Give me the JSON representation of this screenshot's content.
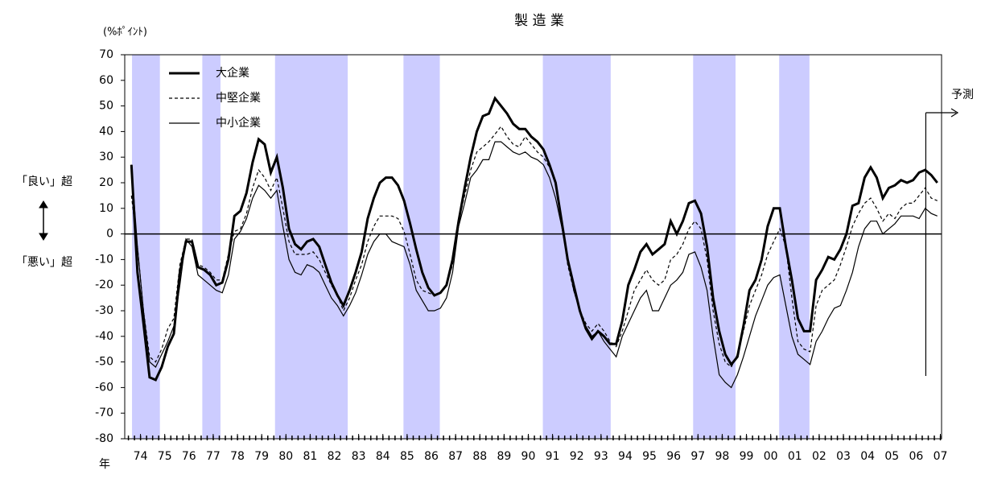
{
  "chart_data": {
    "type": "line",
    "title": "製 造 業",
    "y_unit": "(%ﾎﾟｲﾝﾄ)",
    "annotations": {
      "good": "「良い」超",
      "bad": "「悪い」超",
      "x_unit": "年",
      "forecast": {
        "label": "予測",
        "x": 2006.9
      }
    },
    "xlim": [
      1973.85,
      2007.55
    ],
    "ylim": [
      -80,
      70
    ],
    "yticks": [
      -80,
      -70,
      -60,
      -50,
      -40,
      -30,
      -20,
      -10,
      0,
      10,
      20,
      30,
      40,
      50,
      60,
      70
    ],
    "xticks": [
      {
        "value": 1974.5,
        "label": "74"
      },
      {
        "value": 1975.5,
        "label": "75"
      },
      {
        "value": 1976.5,
        "label": "76"
      },
      {
        "value": 1977.5,
        "label": "77"
      },
      {
        "value": 1978.5,
        "label": "78"
      },
      {
        "value": 1979.5,
        "label": "79"
      },
      {
        "value": 1980.5,
        "label": "80"
      },
      {
        "value": 1981.5,
        "label": "81"
      },
      {
        "value": 1982.5,
        "label": "82"
      },
      {
        "value": 1983.5,
        "label": "83"
      },
      {
        "value": 1984.5,
        "label": "84"
      },
      {
        "value": 1985.5,
        "label": "85"
      },
      {
        "value": 1986.5,
        "label": "86"
      },
      {
        "value": 1987.5,
        "label": "87"
      },
      {
        "value": 1988.5,
        "label": "88"
      },
      {
        "value": 1989.5,
        "label": "89"
      },
      {
        "value": 1990.5,
        "label": "90"
      },
      {
        "value": 1991.5,
        "label": "91"
      },
      {
        "value": 1992.5,
        "label": "92"
      },
      {
        "value": 1993.5,
        "label": "93"
      },
      {
        "value": 1994.5,
        "label": "94"
      },
      {
        "value": 1995.5,
        "label": "95"
      },
      {
        "value": 1996.5,
        "label": "96"
      },
      {
        "value": 1997.5,
        "label": "97"
      },
      {
        "value": 1998.5,
        "label": "98"
      },
      {
        "value": 1999.5,
        "label": "99"
      },
      {
        "value": 2000.5,
        "label": "00"
      },
      {
        "value": 2001.5,
        "label": "01"
      },
      {
        "value": 2002.5,
        "label": "02"
      },
      {
        "value": 2003.5,
        "label": "03"
      },
      {
        "value": 2004.5,
        "label": "04"
      },
      {
        "value": 2005.5,
        "label": "05"
      },
      {
        "value": 2006.5,
        "label": "06"
      },
      {
        "value": 2007.5,
        "label": "07"
      }
    ],
    "shaded_periods": [
      [
        1974.15,
        1975.3
      ],
      [
        1977.05,
        1977.8
      ],
      [
        1980.05,
        1983.05
      ],
      [
        1985.35,
        1986.85
      ],
      [
        1991.1,
        1993.9
      ],
      [
        1997.3,
        1999.05
      ],
      [
        2000.85,
        2002.1
      ]
    ],
    "shade_color": "#ccccff",
    "x": [
      1974.125,
      1974.375,
      1974.625,
      1974.875,
      1975.125,
      1975.375,
      1975.625,
      1975.875,
      1976.125,
      1976.375,
      1976.625,
      1976.875,
      1977.125,
      1977.375,
      1977.625,
      1977.875,
      1978.125,
      1978.375,
      1978.625,
      1978.875,
      1979.125,
      1979.375,
      1979.625,
      1979.875,
      1980.125,
      1980.375,
      1980.625,
      1980.875,
      1981.125,
      1981.375,
      1981.625,
      1981.875,
      1982.125,
      1982.375,
      1982.625,
      1982.875,
      1983.125,
      1983.375,
      1983.625,
      1983.875,
      1984.125,
      1984.375,
      1984.625,
      1984.875,
      1985.125,
      1985.375,
      1985.625,
      1985.875,
      1986.125,
      1986.375,
      1986.625,
      1986.875,
      1987.125,
      1987.375,
      1987.625,
      1987.875,
      1988.125,
      1988.375,
      1988.625,
      1988.875,
      1989.125,
      1989.375,
      1989.625,
      1989.875,
      1990.125,
      1990.375,
      1990.625,
      1990.875,
      1991.125,
      1991.375,
      1991.625,
      1991.875,
      1992.125,
      1992.375,
      1992.625,
      1992.875,
      1993.125,
      1993.375,
      1993.625,
      1993.875,
      1994.125,
      1994.375,
      1994.625,
      1994.875,
      1995.125,
      1995.375,
      1995.625,
      1995.875,
      1996.125,
      1996.375,
      1996.625,
      1996.875,
      1997.125,
      1997.375,
      1997.625,
      1997.875,
      1998.125,
      1998.375,
      1998.625,
      1998.875,
      1999.125,
      1999.375,
      1999.625,
      1999.875,
      2000.125,
      2000.375,
      2000.625,
      2000.875,
      2001.125,
      2001.375,
      2001.625,
      2001.875,
      2002.125,
      2002.375,
      2002.625,
      2002.875,
      2003.125,
      2003.375,
      2003.625,
      2003.875,
      2004.125,
      2004.375,
      2004.625,
      2004.875,
      2005.125,
      2005.375,
      2005.625,
      2005.875,
      2006.125,
      2006.375,
      2006.625,
      2006.875,
      2007.125,
      2007.375
    ],
    "series": [
      {
        "name": "大企業",
        "color": "#000000",
        "style": "thick",
        "values": [
          27,
          -15,
          -35,
          -56,
          -57,
          -52,
          -44,
          -39,
          -15,
          -3,
          -3,
          -13,
          -14,
          -16,
          -20,
          -19,
          -10,
          7,
          9,
          16,
          28,
          37,
          35,
          24,
          30,
          18,
          2,
          -4,
          -6,
          -3,
          -2,
          -5,
          -12,
          -19,
          -24,
          -28,
          -22,
          -15,
          -7,
          6,
          14,
          20,
          22,
          22,
          19,
          13,
          4,
          -6,
          -15,
          -21,
          -24,
          -23,
          -20,
          -10,
          5,
          18,
          30,
          40,
          46,
          47,
          53,
          50,
          47,
          43,
          41,
          41,
          38,
          36,
          33,
          27,
          20,
          5,
          -10,
          -20,
          -30,
          -37,
          -41,
          -38,
          -40,
          -43,
          -43,
          -34,
          -20,
          -14,
          -7,
          -4,
          -8,
          -6,
          -4,
          5,
          0,
          5,
          12,
          13,
          8,
          -5,
          -25,
          -38,
          -47,
          -51,
          -48,
          -36,
          -22,
          -18,
          -10,
          3,
          10,
          10,
          -5,
          -18,
          -33,
          -38,
          -38,
          -18,
          -14,
          -9,
          -10,
          -6,
          0,
          11,
          12,
          22,
          26,
          22,
          14,
          18,
          19,
          21,
          20,
          21,
          24,
          25,
          23,
          20
        ]
      },
      {
        "name": "中堅企業",
        "color": "#000000",
        "style": "dashed",
        "values": [
          15,
          -5,
          -30,
          -48,
          -50,
          -45,
          -37,
          -33,
          -12,
          -2,
          -2,
          -12,
          -13,
          -15,
          -18,
          -18,
          -8,
          1,
          2,
          8,
          18,
          25,
          22,
          17,
          22,
          10,
          -3,
          -8,
          -8,
          -8,
          -7,
          -10,
          -15,
          -20,
          -24,
          -30,
          -25,
          -18,
          -12,
          -3,
          3,
          7,
          7,
          7,
          6,
          1,
          -8,
          -18,
          -22,
          -23,
          -24,
          -23,
          -20,
          -12,
          5,
          15,
          25,
          32,
          34,
          36,
          39,
          42,
          38,
          35,
          34,
          38,
          35,
          32,
          30,
          26,
          20,
          5,
          -12,
          -22,
          -30,
          -35,
          -38,
          -35,
          -38,
          -42,
          -44,
          -38,
          -30,
          -22,
          -18,
          -14,
          -18,
          -20,
          -18,
          -10,
          -8,
          -4,
          2,
          5,
          2,
          -10,
          -30,
          -43,
          -50,
          -52,
          -47,
          -38,
          -28,
          -22,
          -16,
          -8,
          -3,
          2,
          -5,
          -25,
          -42,
          -45,
          -46,
          -28,
          -22,
          -20,
          -18,
          -12,
          -5,
          3,
          8,
          12,
          14,
          10,
          5,
          8,
          6,
          10,
          12,
          12,
          15,
          18,
          14,
          13
        ]
      },
      {
        "name": "中小企業",
        "color": "#000000",
        "style": "thin",
        "values": [
          27,
          -5,
          -30,
          -50,
          -52,
          -47,
          -42,
          -36,
          -20,
          -2,
          -5,
          -16,
          -18,
          -20,
          -22,
          -23,
          -16,
          -2,
          1,
          6,
          14,
          19,
          17,
          14,
          17,
          3,
          -10,
          -15,
          -16,
          -12,
          -13,
          -15,
          -20,
          -25,
          -28,
          -32,
          -28,
          -23,
          -16,
          -8,
          -3,
          0,
          0,
          -3,
          -4,
          -5,
          -12,
          -22,
          -26,
          -30,
          -30,
          -29,
          -25,
          -15,
          3,
          12,
          22,
          25,
          29,
          29,
          36,
          36,
          34,
          32,
          31,
          32,
          30,
          29,
          27,
          22,
          14,
          3,
          -10,
          -22,
          -30,
          -36,
          -40,
          -38,
          -42,
          -45,
          -48,
          -40,
          -35,
          -30,
          -25,
          -22,
          -30,
          -30,
          -25,
          -20,
          -18,
          -15,
          -8,
          -7,
          -13,
          -22,
          -40,
          -55,
          -58,
          -60,
          -55,
          -48,
          -40,
          -32,
          -26,
          -20,
          -17,
          -16,
          -28,
          -40,
          -47,
          -49,
          -51,
          -42,
          -38,
          -33,
          -29,
          -28,
          -22,
          -15,
          -5,
          2,
          5,
          5,
          0,
          2,
          4,
          7,
          7,
          7,
          6,
          10,
          8,
          7
        ]
      }
    ]
  }
}
